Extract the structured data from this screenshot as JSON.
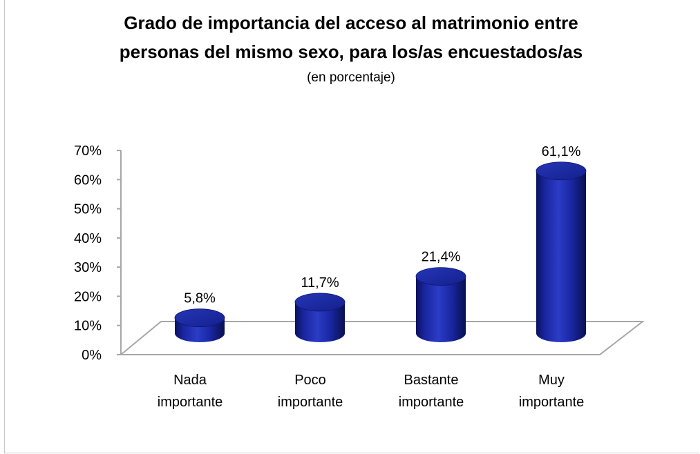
{
  "chart_data": {
    "type": "bar",
    "title_lines": [
      "Grado de importancia  del acceso al matrimonio entre",
      "personas del mismo sexo, para los/as encuestados/as"
    ],
    "subtitle": "(en porcentaje)",
    "categories": [
      [
        "Nada",
        "importante"
      ],
      [
        "Poco",
        "importante"
      ],
      [
        "Bastante",
        "importante"
      ],
      [
        "Muy",
        "importante"
      ]
    ],
    "values": [
      5.8,
      11.7,
      21.4,
      61.1
    ],
    "data_labels": [
      "5,8%",
      "11,7%",
      "21,4%",
      "61,1%"
    ],
    "y_ticks": [
      "0%",
      "10%",
      "20%",
      "30%",
      "40%",
      "50%",
      "60%",
      "70%"
    ],
    "ylim": [
      0,
      70
    ],
    "bar_style": "3d-cylinder",
    "bar_color": "#1c2aa8",
    "bar_dark_color": "#0b1368",
    "bar_light_color": "#4b5bd8",
    "floor_color": "#a6a6a6",
    "grid": false,
    "legend": "none"
  }
}
